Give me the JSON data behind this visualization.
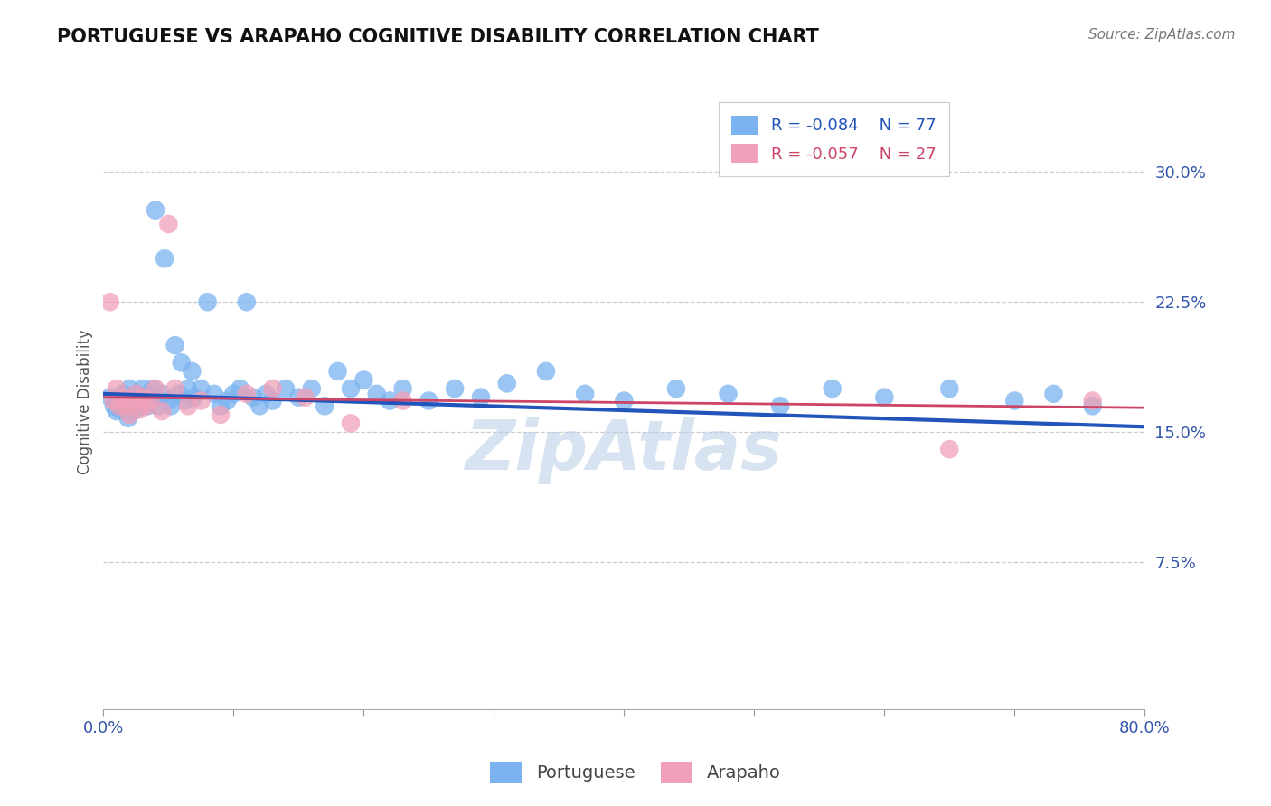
{
  "title": "PORTUGUESE VS ARAPAHO COGNITIVE DISABILITY CORRELATION CHART",
  "source": "Source: ZipAtlas.com",
  "ylabel": "Cognitive Disability",
  "ytick_labels": [
    "7.5%",
    "15.0%",
    "22.5%",
    "30.0%"
  ],
  "ytick_values": [
    0.075,
    0.15,
    0.225,
    0.3
  ],
  "xlim": [
    0.0,
    0.8
  ],
  "ylim": [
    -0.01,
    0.345
  ],
  "legend_r1": "R = -0.084",
  "legend_n1": "N = 77",
  "legend_r2": "R = -0.057",
  "legend_n2": "N = 27",
  "portuguese_color": "#7ab3f0",
  "arapaho_color": "#f0a0b8",
  "trend_blue": "#2255bb",
  "trend_pink": "#cc4466",
  "watermark": "ZipAtlas",
  "background_color": "#ffffff",
  "port_trend": [
    0.172,
    0.153
  ],
  "arap_trend": [
    0.17,
    0.164
  ],
  "portuguese_x": [
    0.005,
    0.008,
    0.01,
    0.012,
    0.013,
    0.015,
    0.016,
    0.017,
    0.018,
    0.019,
    0.02,
    0.021,
    0.022,
    0.023,
    0.024,
    0.025,
    0.026,
    0.027,
    0.028,
    0.029,
    0.03,
    0.032,
    0.034,
    0.035,
    0.037,
    0.038,
    0.04,
    0.042,
    0.045,
    0.047,
    0.05,
    0.052,
    0.055,
    0.058,
    0.06,
    0.063,
    0.065,
    0.068,
    0.07,
    0.075,
    0.08,
    0.085,
    0.09,
    0.095,
    0.1,
    0.105,
    0.11,
    0.115,
    0.12,
    0.125,
    0.13,
    0.14,
    0.15,
    0.16,
    0.17,
    0.18,
    0.19,
    0.2,
    0.21,
    0.22,
    0.23,
    0.25,
    0.27,
    0.29,
    0.31,
    0.34,
    0.37,
    0.4,
    0.44,
    0.48,
    0.52,
    0.56,
    0.6,
    0.65,
    0.7,
    0.73,
    0.76
  ],
  "portuguese_y": [
    0.17,
    0.165,
    0.162,
    0.168,
    0.163,
    0.172,
    0.165,
    0.162,
    0.168,
    0.158,
    0.175,
    0.163,
    0.17,
    0.162,
    0.168,
    0.165,
    0.172,
    0.168,
    0.17,
    0.165,
    0.175,
    0.168,
    0.165,
    0.172,
    0.168,
    0.175,
    0.278,
    0.165,
    0.172,
    0.25,
    0.168,
    0.165,
    0.2,
    0.172,
    0.19,
    0.168,
    0.175,
    0.185,
    0.17,
    0.175,
    0.225,
    0.172,
    0.165,
    0.168,
    0.172,
    0.175,
    0.225,
    0.17,
    0.165,
    0.172,
    0.168,
    0.175,
    0.17,
    0.175,
    0.165,
    0.185,
    0.175,
    0.18,
    0.172,
    0.168,
    0.175,
    0.168,
    0.175,
    0.17,
    0.178,
    0.185,
    0.172,
    0.168,
    0.175,
    0.172,
    0.165,
    0.175,
    0.17,
    0.175,
    0.168,
    0.172,
    0.165
  ],
  "arapaho_x": [
    0.005,
    0.008,
    0.01,
    0.012,
    0.015,
    0.018,
    0.02,
    0.022,
    0.025,
    0.028,
    0.03,
    0.033,
    0.036,
    0.04,
    0.045,
    0.05,
    0.055,
    0.065,
    0.075,
    0.09,
    0.11,
    0.13,
    0.155,
    0.19,
    0.23,
    0.65,
    0.76
  ],
  "arapaho_y": [
    0.225,
    0.168,
    0.175,
    0.165,
    0.17,
    0.165,
    0.16,
    0.168,
    0.172,
    0.163,
    0.17,
    0.165,
    0.168,
    0.175,
    0.162,
    0.27,
    0.175,
    0.165,
    0.168,
    0.16,
    0.172,
    0.175,
    0.17,
    0.155,
    0.168,
    0.14,
    0.168
  ]
}
